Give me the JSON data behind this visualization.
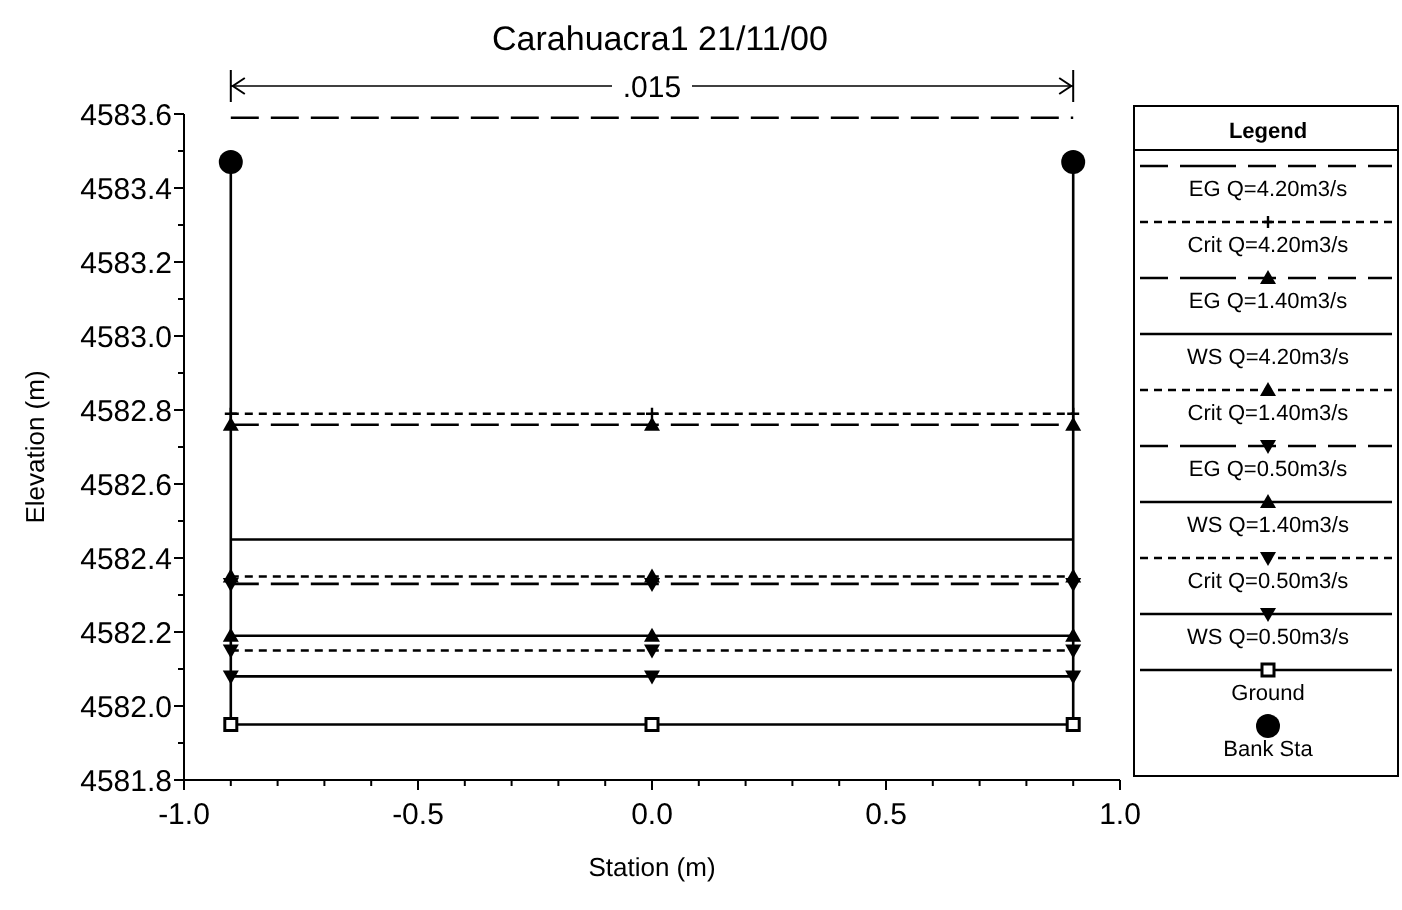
{
  "chart_data": {
    "type": "line",
    "title": "Carahuacra1      21/11/00",
    "xlabel": "Station (m)",
    "ylabel": "Elevation (m)",
    "legend_title": "Legend",
    "legend": "right",
    "annotations": [
      ".015"
    ],
    "xlim": [
      -1,
      1
    ],
    "ylim": [
      4581.8,
      4583.6
    ],
    "xticks": [
      {
        "value": -1,
        "label": "-1.0"
      },
      {
        "value": -0.9,
        "label": null
      },
      {
        "value": -0.8,
        "label": null
      },
      {
        "value": -0.7,
        "label": null
      },
      {
        "value": -0.6,
        "label": null
      },
      -0.5,
      {
        "value": -0.4,
        "label": null
      },
      {
        "value": -0.3,
        "label": null
      },
      {
        "value": -0.2,
        "label": null
      },
      {
        "value": -0.1,
        "label": null
      },
      {
        "value": 0,
        "label": "0.0"
      },
      {
        "value": 0.1,
        "label": null
      },
      {
        "value": 0.2,
        "label": null
      },
      {
        "value": 0.3,
        "label": null
      },
      {
        "value": 0.4,
        "label": null
      },
      0.5,
      {
        "value": 0.6,
        "label": null
      },
      {
        "value": 0.7,
        "label": null
      },
      {
        "value": 0.8,
        "label": null
      },
      {
        "value": 0.9,
        "label": null
      },
      {
        "value": 1,
        "label": "1.0"
      }
    ],
    "yticks": [
      4581.8,
      {
        "value": 4581.9,
        "label": null
      },
      {
        "value": 4582,
        "label": "4582.0"
      },
      {
        "value": 4582.1,
        "label": null
      },
      4582.2,
      {
        "value": 4582.3,
        "label": null
      },
      4582.4,
      {
        "value": 4582.5,
        "label": null
      },
      4582.6,
      {
        "value": 4582.7,
        "label": null
      },
      4582.8,
      {
        "value": 4582.9,
        "label": null
      },
      {
        "value": 4583,
        "label": "4583.0"
      },
      {
        "value": 4583.1,
        "label": null
      },
      4583.2,
      {
        "value": 4583.3,
        "label": null
      },
      4583.4,
      {
        "value": 4583.5,
        "label": null
      },
      4583.6
    ],
    "x": [
      -0.9,
      0,
      0.9
    ],
    "series": [
      {
        "name": "EG Q=4.20m3/s",
        "color": "#000000",
        "line_style": "longdash",
        "marker": "none",
        "values": [
          4583.59,
          4583.59,
          4583.59
        ]
      },
      {
        "name": "Crit Q=4.20m3/s",
        "color": "#000000",
        "line_style": "dashed",
        "marker": "cross",
        "values": [
          4582.79,
          4582.79,
          4582.79
        ]
      },
      {
        "name": "EG Q=1.40m3/s",
        "color": "#000000",
        "line_style": "longdash",
        "marker": "triangle",
        "values": [
          4582.76,
          4582.76,
          4582.76
        ]
      },
      {
        "name": "WS Q=4.20m3/s",
        "color": "#000000",
        "line_style": "solid",
        "marker": "none",
        "values": [
          4582.45,
          4582.45,
          4582.45
        ]
      },
      {
        "name": "Crit Q=1.40m3/s",
        "color": "#000000",
        "line_style": "dashed",
        "marker": "triangle",
        "values": [
          4582.35,
          4582.35,
          4582.35
        ]
      },
      {
        "name": "EG Q=0.50m3/s",
        "color": "#000000",
        "line_style": "longdash",
        "marker": "triangle-down",
        "values": [
          4582.33,
          4582.33,
          4582.33
        ]
      },
      {
        "name": "WS Q=1.40m3/s",
        "color": "#000000",
        "line_style": "solid",
        "marker": "triangle",
        "values": [
          4582.19,
          4582.19,
          4582.19
        ]
      },
      {
        "name": "Crit Q=0.50m3/s",
        "color": "#000000",
        "line_style": "dashed",
        "marker": "triangle-down",
        "values": [
          4582.15,
          4582.15,
          4582.15
        ]
      },
      {
        "name": "WS Q=0.50m3/s",
        "color": "#000000",
        "line_style": "solid",
        "marker": "triangle-down",
        "values": [
          4582.08,
          4582.08,
          4582.08
        ]
      },
      {
        "name": "Ground",
        "color": "#000000",
        "line_style": "solid",
        "marker": "square",
        "x": [
          -0.9,
          -0.9,
          0,
          0.9,
          0.9
        ],
        "values": [
          4583.47,
          4581.95,
          4581.95,
          4581.95,
          4583.47
        ]
      },
      {
        "name": "Bank Sta",
        "type": "scatter",
        "color": "#000000",
        "marker": "circle",
        "x": [
          -0.9,
          0.9
        ],
        "values": [
          4583.47,
          4583.47
        ]
      }
    ]
  }
}
